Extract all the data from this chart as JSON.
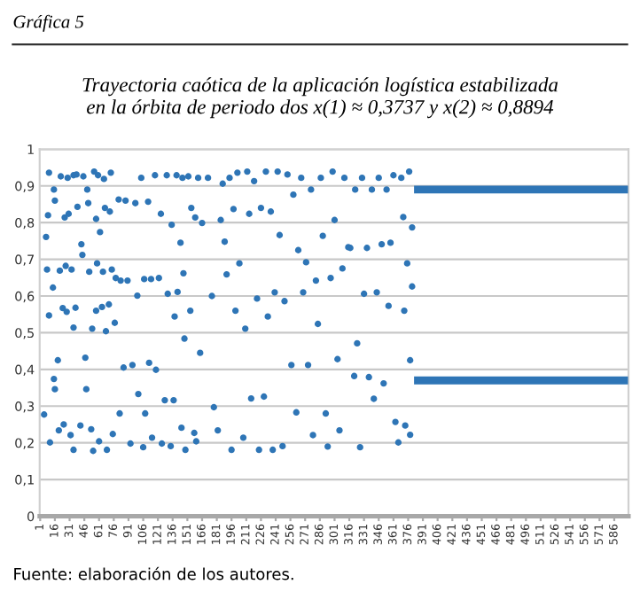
{
  "chart_data": {
    "type": "scatter",
    "title": "Trayectoria caótica de la aplicación logística estabilizada\nen la órbita de periodo dos x(1) ≈ 0,3737 y x(2) ≈ 0,8894",
    "annotations": [
      "Gráfica 5",
      "Fuente: elaboración de los autores."
    ],
    "xlim": [
      0.5,
      600.5
    ],
    "xticks": [
      1,
      16,
      31,
      46,
      61,
      76,
      91,
      106,
      121,
      136,
      151,
      166,
      181,
      196,
      211,
      226,
      241,
      256,
      271,
      286,
      301,
      316,
      331,
      346,
      361,
      376,
      391,
      406,
      421,
      436,
      451,
      466,
      481,
      496,
      511,
      526,
      541,
      556,
      571,
      586
    ],
    "ylim": [
      0,
      1
    ],
    "yticks": [
      0,
      {
        "value": 0.1,
        "label": "0,1"
      },
      {
        "value": 0.2,
        "label": "0,2"
      },
      {
        "value": 0.3,
        "label": "0,3"
      },
      {
        "value": 0.4,
        "label": "0,4"
      },
      {
        "value": 0.5,
        "label": "0,5"
      },
      {
        "value": 0.6,
        "label": "0,6"
      },
      {
        "value": 0.7,
        "label": "0,7"
      },
      {
        "value": 0.8,
        "label": "0,8"
      },
      {
        "value": 0.9,
        "label": "0,9"
      },
      1
    ],
    "grid": "y",
    "series": [
      {
        "marker": "circle",
        "color": "#2e75b6",
        "x": [
          5,
          7,
          8,
          9,
          10,
          10,
          11,
          14,
          15,
          15,
          16,
          16,
          19,
          20,
          21,
          22,
          24,
          25,
          26,
          27,
          28,
          29,
          30,
          32,
          33,
          35,
          35,
          35,
          37,
          38,
          39,
          42,
          43,
          44,
          45,
          47,
          48,
          49,
          50,
          51,
          53,
          54,
          55,
          56,
          58,
          58,
          59,
          60,
          61,
          62,
          64,
          65,
          66,
          67,
          68,
          69,
          71,
          72,
          73,
          74,
          75,
          77,
          78,
          81,
          82,
          83,
          86,
          88,
          90,
          93,
          95,
          98,
          100,
          101,
          104,
          106,
          107,
          108,
          111,
          112,
          114,
          115,
          118,
          119,
          122,
          124,
          125,
          128,
          130,
          131,
          134,
          135,
          137,
          138,
          140,
          141,
          144,
          145,
          146,
          147,
          148,
          149,
          152,
          154,
          155,
          158,
          159,
          160,
          162,
          164,
          166,
          172,
          176,
          178,
          182,
          185,
          187,
          189,
          191,
          194,
          196,
          198,
          200,
          202,
          204,
          208,
          210,
          212,
          214,
          216,
          219,
          222,
          224,
          226,
          229,
          231,
          233,
          236,
          238,
          240,
          243,
          245,
          248,
          250,
          253,
          257,
          259,
          262,
          264,
          267,
          269,
          272,
          274,
          277,
          279,
          282,
          284,
          287,
          289,
          292,
          294,
          297,
          299,
          301,
          304,
          306,
          309,
          311,
          315,
          317,
          321,
          322,
          324,
          327,
          329,
          331,
          334,
          336,
          339,
          341,
          344,
          346,
          349,
          351,
          354,
          356,
          358,
          361,
          363,
          366,
          369,
          372,
          371,
          373,
          375,
          377,
          378,
          378,
          380,
          380
        ],
        "values": [
          0.277,
          0.761,
          0.672,
          0.82,
          0.936,
          0.547,
          0.201,
          0.623,
          0.89,
          0.374,
          0.86,
          0.346,
          0.425,
          0.234,
          0.669,
          0.926,
          0.567,
          0.25,
          0.814,
          0.682,
          0.557,
          0.922,
          0.824,
          0.221,
          0.672,
          0.929,
          0.181,
          0.514,
          0.568,
          0.931,
          0.843,
          0.247,
          0.741,
          0.712,
          0.926,
          0.432,
          0.346,
          0.89,
          0.853,
          0.666,
          0.237,
          0.511,
          0.178,
          0.939,
          0.81,
          0.56,
          0.689,
          0.929,
          0.204,
          0.774,
          0.57,
          0.666,
          0.919,
          0.84,
          0.504,
          0.181,
          0.577,
          0.83,
          0.936,
          0.672,
          0.224,
          0.527,
          0.649,
          0.863,
          0.28,
          0.642,
          0.405,
          0.86,
          0.642,
          0.198,
          0.412,
          0.853,
          0.601,
          0.333,
          0.922,
          0.188,
          0.646,
          0.28,
          0.857,
          0.418,
          0.646,
          0.214,
          0.929,
          0.399,
          0.649,
          0.824,
          0.198,
          0.316,
          0.929,
          0.606,
          0.191,
          0.794,
          0.316,
          0.544,
          0.929,
          0.611,
          0.745,
          0.241,
          0.922,
          0.662,
          0.484,
          0.181,
          0.926,
          0.56,
          0.84,
          0.227,
          0.814,
          0.204,
          0.922,
          0.445,
          0.799,
          0.922,
          0.6,
          0.297,
          0.234,
          0.807,
          0.906,
          0.748,
          0.659,
          0.922,
          0.181,
          0.837,
          0.56,
          0.936,
          0.689,
          0.214,
          0.511,
          0.939,
          0.824,
          0.321,
          0.913,
          0.593,
          0.181,
          0.84,
          0.326,
          0.939,
          0.544,
          0.83,
          0.181,
          0.61,
          0.939,
          0.766,
          0.191,
          0.586,
          0.931,
          0.412,
          0.876,
          0.283,
          0.725,
          0.922,
          0.61,
          0.692,
          0.412,
          0.89,
          0.221,
          0.642,
          0.524,
          0.922,
          0.764,
          0.28,
          0.19,
          0.649,
          0.939,
          0.807,
          0.428,
          0.234,
          0.675,
          0.922,
          0.733,
          0.731,
          0.382,
          0.89,
          0.471,
          0.188,
          0.922,
          0.606,
          0.731,
          0.379,
          0.89,
          0.32,
          0.61,
          0.922,
          0.741,
          0.362,
          0.89,
          0.573,
          0.745,
          0.929,
          0.257,
          0.201,
          0.922,
          0.56,
          0.815,
          0.247,
          0.689,
          0.939,
          0.425,
          0.222,
          0.787,
          0.626
        ]
      },
      {
        "type": "line",
        "color": "#2e75b6",
        "x": [
          382,
          600
        ],
        "values": [
          0.89,
          0.89
        ]
      },
      {
        "type": "line",
        "color": "#2e75b6",
        "x": [
          382,
          600
        ],
        "values": [
          0.37,
          0.37
        ]
      }
    ]
  }
}
